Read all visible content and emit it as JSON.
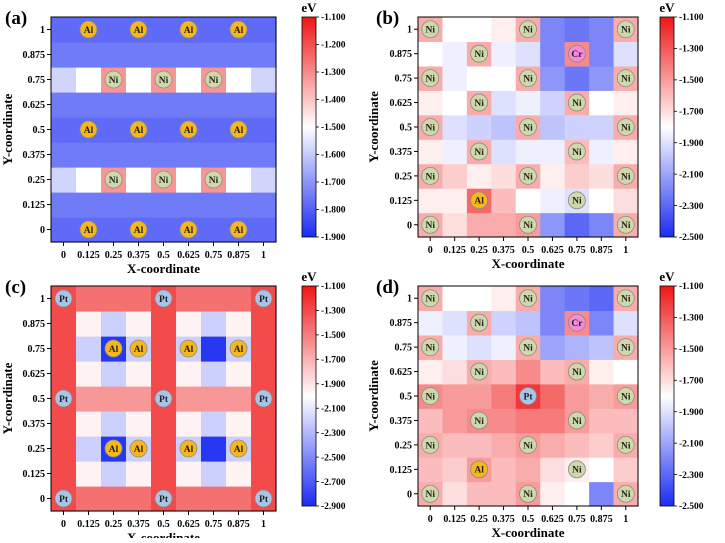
{
  "chart_data": [
    {
      "type": "heatmap",
      "title": "(a)",
      "xlabel": "X-coordinate",
      "ylabel": "Y-coordinate",
      "x_ticks": [
        "0",
        "0.125",
        "0.25",
        "0.375",
        "0.5",
        "0.625",
        "0.75",
        "0.875",
        "1"
      ],
      "y_ticks": [
        "0",
        "0.125",
        "0.25",
        "0.375",
        "0.5",
        "0.625",
        "0.75",
        "0.875",
        "1"
      ],
      "colorbar": {
        "unit": "eV",
        "min": -1.9,
        "max": -1.1,
        "ticks": [
          "-1.100",
          "-1.200",
          "-1.300",
          "-1.400",
          "-1.500",
          "-1.600",
          "-1.700",
          "-1.800",
          "-1.900"
        ]
      },
      "values": [
        [
          -1.78,
          -1.78,
          -1.78,
          -1.78,
          -1.78,
          -1.78,
          -1.78,
          -1.78,
          -1.78
        ],
        [
          -1.75,
          -1.75,
          -1.75,
          -1.75,
          -1.75,
          -1.75,
          -1.75,
          -1.75,
          -1.75
        ],
        [
          -1.58,
          -1.5,
          -1.32,
          -1.5,
          -1.32,
          -1.5,
          -1.32,
          -1.5,
          -1.58
        ],
        [
          -1.75,
          -1.75,
          -1.75,
          -1.75,
          -1.75,
          -1.75,
          -1.75,
          -1.75,
          -1.75
        ],
        [
          -1.78,
          -1.78,
          -1.78,
          -1.78,
          -1.78,
          -1.78,
          -1.78,
          -1.78,
          -1.78
        ],
        [
          -1.75,
          -1.75,
          -1.75,
          -1.75,
          -1.75,
          -1.75,
          -1.75,
          -1.75,
          -1.75
        ],
        [
          -1.58,
          -1.5,
          -1.32,
          -1.5,
          -1.32,
          -1.5,
          -1.32,
          -1.5,
          -1.58
        ],
        [
          -1.75,
          -1.75,
          -1.75,
          -1.75,
          -1.75,
          -1.75,
          -1.75,
          -1.75,
          -1.75
        ],
        [
          -1.78,
          -1.78,
          -1.78,
          -1.78,
          -1.78,
          -1.78,
          -1.78,
          -1.78,
          -1.78
        ]
      ],
      "atoms": [
        {
          "label": "Al",
          "x": 0.125,
          "y": 0
        },
        {
          "label": "Al",
          "x": 0.375,
          "y": 0
        },
        {
          "label": "Al",
          "x": 0.625,
          "y": 0
        },
        {
          "label": "Al",
          "x": 0.875,
          "y": 0
        },
        {
          "label": "Ni",
          "x": 0.25,
          "y": 0.25
        },
        {
          "label": "Ni",
          "x": 0.5,
          "y": 0.25
        },
        {
          "label": "Ni",
          "x": 0.75,
          "y": 0.25
        },
        {
          "label": "Al",
          "x": 0.125,
          "y": 0.5
        },
        {
          "label": "Al",
          "x": 0.375,
          "y": 0.5
        },
        {
          "label": "Al",
          "x": 0.625,
          "y": 0.5
        },
        {
          "label": "Al",
          "x": 0.875,
          "y": 0.5
        },
        {
          "label": "Ni",
          "x": 0.25,
          "y": 0.75
        },
        {
          "label": "Ni",
          "x": 0.5,
          "y": 0.75
        },
        {
          "label": "Ni",
          "x": 0.75,
          "y": 0.75
        },
        {
          "label": "Al",
          "x": 0.125,
          "y": 1
        },
        {
          "label": "Al",
          "x": 0.375,
          "y": 1
        },
        {
          "label": "Al",
          "x": 0.625,
          "y": 1
        },
        {
          "label": "Al",
          "x": 0.875,
          "y": 1
        }
      ]
    },
    {
      "type": "heatmap",
      "title": "(b)",
      "xlabel": "X-coordinate",
      "ylabel": "Y-coordinate",
      "x_ticks": [
        "0",
        "0.125",
        "0.25",
        "0.375",
        "0.5",
        "0.625",
        "0.75",
        "0.875",
        "1"
      ],
      "y_ticks": [
        "0",
        "0.125",
        "0.25",
        "0.375",
        "0.5",
        "0.625",
        "0.75",
        "0.875",
        "1"
      ],
      "colorbar": {
        "unit": "eV",
        "min": -2.5,
        "max": -1.1,
        "ticks": [
          "-1.100",
          "-1.300",
          "-1.500",
          "-1.700",
          "-1.900",
          "-2.100",
          "-2.300",
          "-2.500"
        ]
      },
      "values": [
        [
          -1.55,
          -1.7,
          -1.55,
          -1.55,
          -1.5,
          -2.15,
          -2.3,
          -2.2,
          -1.55
        ],
        [
          -1.75,
          -1.75,
          -1.35,
          -1.6,
          -1.8,
          -1.85,
          -1.9,
          -1.8,
          -1.7
        ],
        [
          -1.55,
          -1.65,
          -1.75,
          -1.7,
          -1.55,
          -1.75,
          -1.65,
          -1.7,
          -1.55
        ],
        [
          -1.75,
          -1.85,
          -1.55,
          -1.9,
          -1.85,
          -1.85,
          -1.6,
          -1.85,
          -1.75
        ],
        [
          -1.55,
          -1.9,
          -1.95,
          -2.0,
          -1.55,
          -2.0,
          -1.95,
          -1.95,
          -1.55
        ],
        [
          -1.75,
          -1.8,
          -1.55,
          -1.9,
          -1.85,
          -1.95,
          -1.55,
          -1.8,
          -1.75
        ],
        [
          -1.55,
          -1.85,
          -1.8,
          -1.8,
          -1.55,
          -2.15,
          -2.25,
          -2.15,
          -1.55
        ],
        [
          -1.8,
          -1.85,
          -1.55,
          -1.85,
          -1.9,
          -2.2,
          -1.45,
          -2.2,
          -1.9
        ],
        [
          -1.55,
          -1.8,
          -1.8,
          -1.75,
          -1.55,
          -2.2,
          -2.25,
          -2.2,
          -1.55
        ]
      ],
      "atoms": [
        {
          "label": "Ni",
          "x": 0,
          "y": 0
        },
        {
          "label": "Ni",
          "x": 0.5,
          "y": 0
        },
        {
          "label": "Ni",
          "x": 1,
          "y": 0
        },
        {
          "label": "Al",
          "x": 0.25,
          "y": 0.125
        },
        {
          "label": "Ni",
          "x": 0.75,
          "y": 0.125
        },
        {
          "label": "Ni",
          "x": 0,
          "y": 0.25
        },
        {
          "label": "Ni",
          "x": 0.5,
          "y": 0.25
        },
        {
          "label": "Ni",
          "x": 1,
          "y": 0.25
        },
        {
          "label": "Ni",
          "x": 0.25,
          "y": 0.375
        },
        {
          "label": "Ni",
          "x": 0.75,
          "y": 0.375
        },
        {
          "label": "Ni",
          "x": 0,
          "y": 0.5
        },
        {
          "label": "Ni",
          "x": 0.5,
          "y": 0.5
        },
        {
          "label": "Ni",
          "x": 1,
          "y": 0.5
        },
        {
          "label": "Ni",
          "x": 0.25,
          "y": 0.625
        },
        {
          "label": "Ni",
          "x": 0.75,
          "y": 0.625
        },
        {
          "label": "Ni",
          "x": 0,
          "y": 0.75
        },
        {
          "label": "Ni",
          "x": 0.5,
          "y": 0.75
        },
        {
          "label": "Ni",
          "x": 1,
          "y": 0.75
        },
        {
          "label": "Ni",
          "x": 0.25,
          "y": 0.875
        },
        {
          "label": "Cr",
          "x": 0.75,
          "y": 0.875
        },
        {
          "label": "Ni",
          "x": 0,
          "y": 1
        },
        {
          "label": "Ni",
          "x": 0.5,
          "y": 1
        },
        {
          "label": "Ni",
          "x": 1,
          "y": 1
        }
      ]
    },
    {
      "type": "heatmap",
      "title": "(c)",
      "xlabel": "X-coordinate",
      "ylabel": "Y-coordinate",
      "x_ticks": [
        "0",
        "0.125",
        "0.25",
        "0.375",
        "0.5",
        "0.625",
        "0.75",
        "0.875",
        "1"
      ],
      "y_ticks": [
        "0",
        "0.125",
        "0.25",
        "0.375",
        "0.5",
        "0.625",
        "0.75",
        "0.875",
        "1"
      ],
      "colorbar": {
        "unit": "eV",
        "min": -2.9,
        "max": -1.1,
        "ticks": [
          "-1.100",
          "-1.300",
          "-1.500",
          "-1.700",
          "-1.900",
          "-2.100",
          "-2.300",
          "-2.500",
          "-2.700",
          "-2.900"
        ]
      },
      "values": [
        [
          -1.3,
          -1.45,
          -1.45,
          -1.45,
          -1.3,
          -1.45,
          -1.45,
          -1.45,
          -1.3
        ],
        [
          -1.3,
          -1.95,
          -2.2,
          -1.95,
          -1.3,
          -1.95,
          -2.2,
          -1.95,
          -1.3
        ],
        [
          -1.3,
          -2.2,
          -2.85,
          -2.2,
          -1.3,
          -2.2,
          -2.85,
          -2.2,
          -1.3
        ],
        [
          -1.3,
          -1.95,
          -2.2,
          -1.95,
          -1.3,
          -1.95,
          -2.2,
          -1.95,
          -1.3
        ],
        [
          -1.3,
          -1.6,
          -1.6,
          -1.6,
          -1.3,
          -1.6,
          -1.6,
          -1.6,
          -1.3
        ],
        [
          -1.3,
          -1.95,
          -2.2,
          -1.95,
          -1.3,
          -1.95,
          -2.2,
          -1.95,
          -1.3
        ],
        [
          -1.3,
          -2.2,
          -2.85,
          -2.2,
          -1.3,
          -2.2,
          -2.85,
          -2.2,
          -1.3
        ],
        [
          -1.3,
          -1.95,
          -2.2,
          -1.95,
          -1.3,
          -1.95,
          -2.2,
          -1.95,
          -1.3
        ],
        [
          -1.3,
          -1.45,
          -1.45,
          -1.45,
          -1.3,
          -1.45,
          -1.45,
          -1.45,
          -1.3
        ]
      ],
      "atoms": [
        {
          "label": "Pt",
          "x": 0,
          "y": 0
        },
        {
          "label": "Pt",
          "x": 0.5,
          "y": 0
        },
        {
          "label": "Pt",
          "x": 1,
          "y": 0
        },
        {
          "label": "Al",
          "x": 0.25,
          "y": 0.25
        },
        {
          "label": "Al",
          "x": 0.375,
          "y": 0.25
        },
        {
          "label": "Al",
          "x": 0.625,
          "y": 0.25
        },
        {
          "label": "Al",
          "x": 0.875,
          "y": 0.25
        },
        {
          "label": "Pt",
          "x": 0,
          "y": 0.5
        },
        {
          "label": "Pt",
          "x": 0.5,
          "y": 0.5
        },
        {
          "label": "Pt",
          "x": 1,
          "y": 0.5
        },
        {
          "label": "Al",
          "x": 0.25,
          "y": 0.75
        },
        {
          "label": "Al",
          "x": 0.375,
          "y": 0.75
        },
        {
          "label": "Al",
          "x": 0.625,
          "y": 0.75
        },
        {
          "label": "Al",
          "x": 0.875,
          "y": 0.75
        },
        {
          "label": "Pt",
          "x": 0,
          "y": 1
        },
        {
          "label": "Pt",
          "x": 0.5,
          "y": 1
        },
        {
          "label": "Pt",
          "x": 1,
          "y": 1
        }
      ]
    },
    {
      "type": "heatmap",
      "title": "(d)",
      "xlabel": "X-coordinate",
      "ylabel": "Y-coordinate",
      "x_ticks": [
        "0",
        "0.125",
        "0.25",
        "0.375",
        "0.5",
        "0.625",
        "0.75",
        "0.875",
        "1"
      ],
      "y_ticks": [
        "0",
        "0.125",
        "0.25",
        "0.375",
        "0.5",
        "0.625",
        "0.75",
        "0.875",
        "1"
      ],
      "colorbar": {
        "unit": "eV",
        "min": -2.5,
        "max": -1.1,
        "ticks": [
          "-1.100",
          "-1.300",
          "-1.500",
          "-1.700",
          "-1.900",
          "-2.100",
          "-2.300",
          "-2.500"
        ]
      },
      "values": [
        [
          -1.55,
          -1.7,
          -1.6,
          -1.6,
          -1.5,
          -1.75,
          -1.8,
          -2.2,
          -1.55
        ],
        [
          -1.6,
          -1.65,
          -1.5,
          -1.6,
          -1.55,
          -1.7,
          -1.75,
          -1.8,
          -1.65
        ],
        [
          -1.55,
          -1.6,
          -1.6,
          -1.55,
          -1.5,
          -1.55,
          -1.6,
          -1.65,
          -1.55
        ],
        [
          -1.6,
          -1.5,
          -1.45,
          -1.45,
          -1.4,
          -1.4,
          -1.5,
          -1.6,
          -1.6
        ],
        [
          -1.45,
          -1.5,
          -1.5,
          -1.4,
          -1.2,
          -1.35,
          -1.5,
          -1.55,
          -1.5
        ],
        [
          -1.75,
          -1.7,
          -1.55,
          -1.6,
          -1.45,
          -1.6,
          -1.55,
          -1.75,
          -1.8
        ],
        [
          -1.55,
          -1.85,
          -1.9,
          -1.85,
          -1.55,
          -2.1,
          -2.05,
          -2.0,
          -1.55
        ],
        [
          -1.85,
          -1.9,
          -1.55,
          -1.95,
          -2.0,
          -2.2,
          -1.45,
          -2.2,
          -1.9
        ],
        [
          -1.55,
          -1.8,
          -1.8,
          -1.75,
          -1.55,
          -2.2,
          -2.25,
          -2.3,
          -1.55
        ]
      ],
      "atoms": [
        {
          "label": "Ni",
          "x": 0,
          "y": 0
        },
        {
          "label": "Ni",
          "x": 0.5,
          "y": 0
        },
        {
          "label": "Ni",
          "x": 1,
          "y": 0
        },
        {
          "label": "Al",
          "x": 0.25,
          "y": 0.125
        },
        {
          "label": "Ni",
          "x": 0.75,
          "y": 0.125
        },
        {
          "label": "Ni",
          "x": 0,
          "y": 0.25
        },
        {
          "label": "Ni",
          "x": 0.5,
          "y": 0.25
        },
        {
          "label": "Ni",
          "x": 1,
          "y": 0.25
        },
        {
          "label": "Ni",
          "x": 0.25,
          "y": 0.375
        },
        {
          "label": "Ni",
          "x": 0.75,
          "y": 0.375
        },
        {
          "label": "Ni",
          "x": 0,
          "y": 0.5
        },
        {
          "label": "Pt",
          "x": 0.5,
          "y": 0.5
        },
        {
          "label": "Ni",
          "x": 1,
          "y": 0.5
        },
        {
          "label": "Ni",
          "x": 0.25,
          "y": 0.625
        },
        {
          "label": "Ni",
          "x": 0.75,
          "y": 0.625
        },
        {
          "label": "Ni",
          "x": 0,
          "y": 0.75
        },
        {
          "label": "Ni",
          "x": 0.5,
          "y": 0.75
        },
        {
          "label": "Ni",
          "x": 1,
          "y": 0.75
        },
        {
          "label": "Ni",
          "x": 0.25,
          "y": 0.875
        },
        {
          "label": "Cr",
          "x": 0.75,
          "y": 0.875
        },
        {
          "label": "Ni",
          "x": 0,
          "y": 1
        },
        {
          "label": "Ni",
          "x": 0.5,
          "y": 1
        },
        {
          "label": "Ni",
          "x": 1,
          "y": 1
        }
      ]
    }
  ],
  "atom_colors": {
    "Al": "#f5b71c",
    "Ni": "#cfd8a8",
    "Pt": "#a9c4e6",
    "Cr": "#f58ad8"
  },
  "colormap": {
    "low": "#1a2cf2",
    "mid": "#ffffff",
    "high": "#ef1616"
  }
}
